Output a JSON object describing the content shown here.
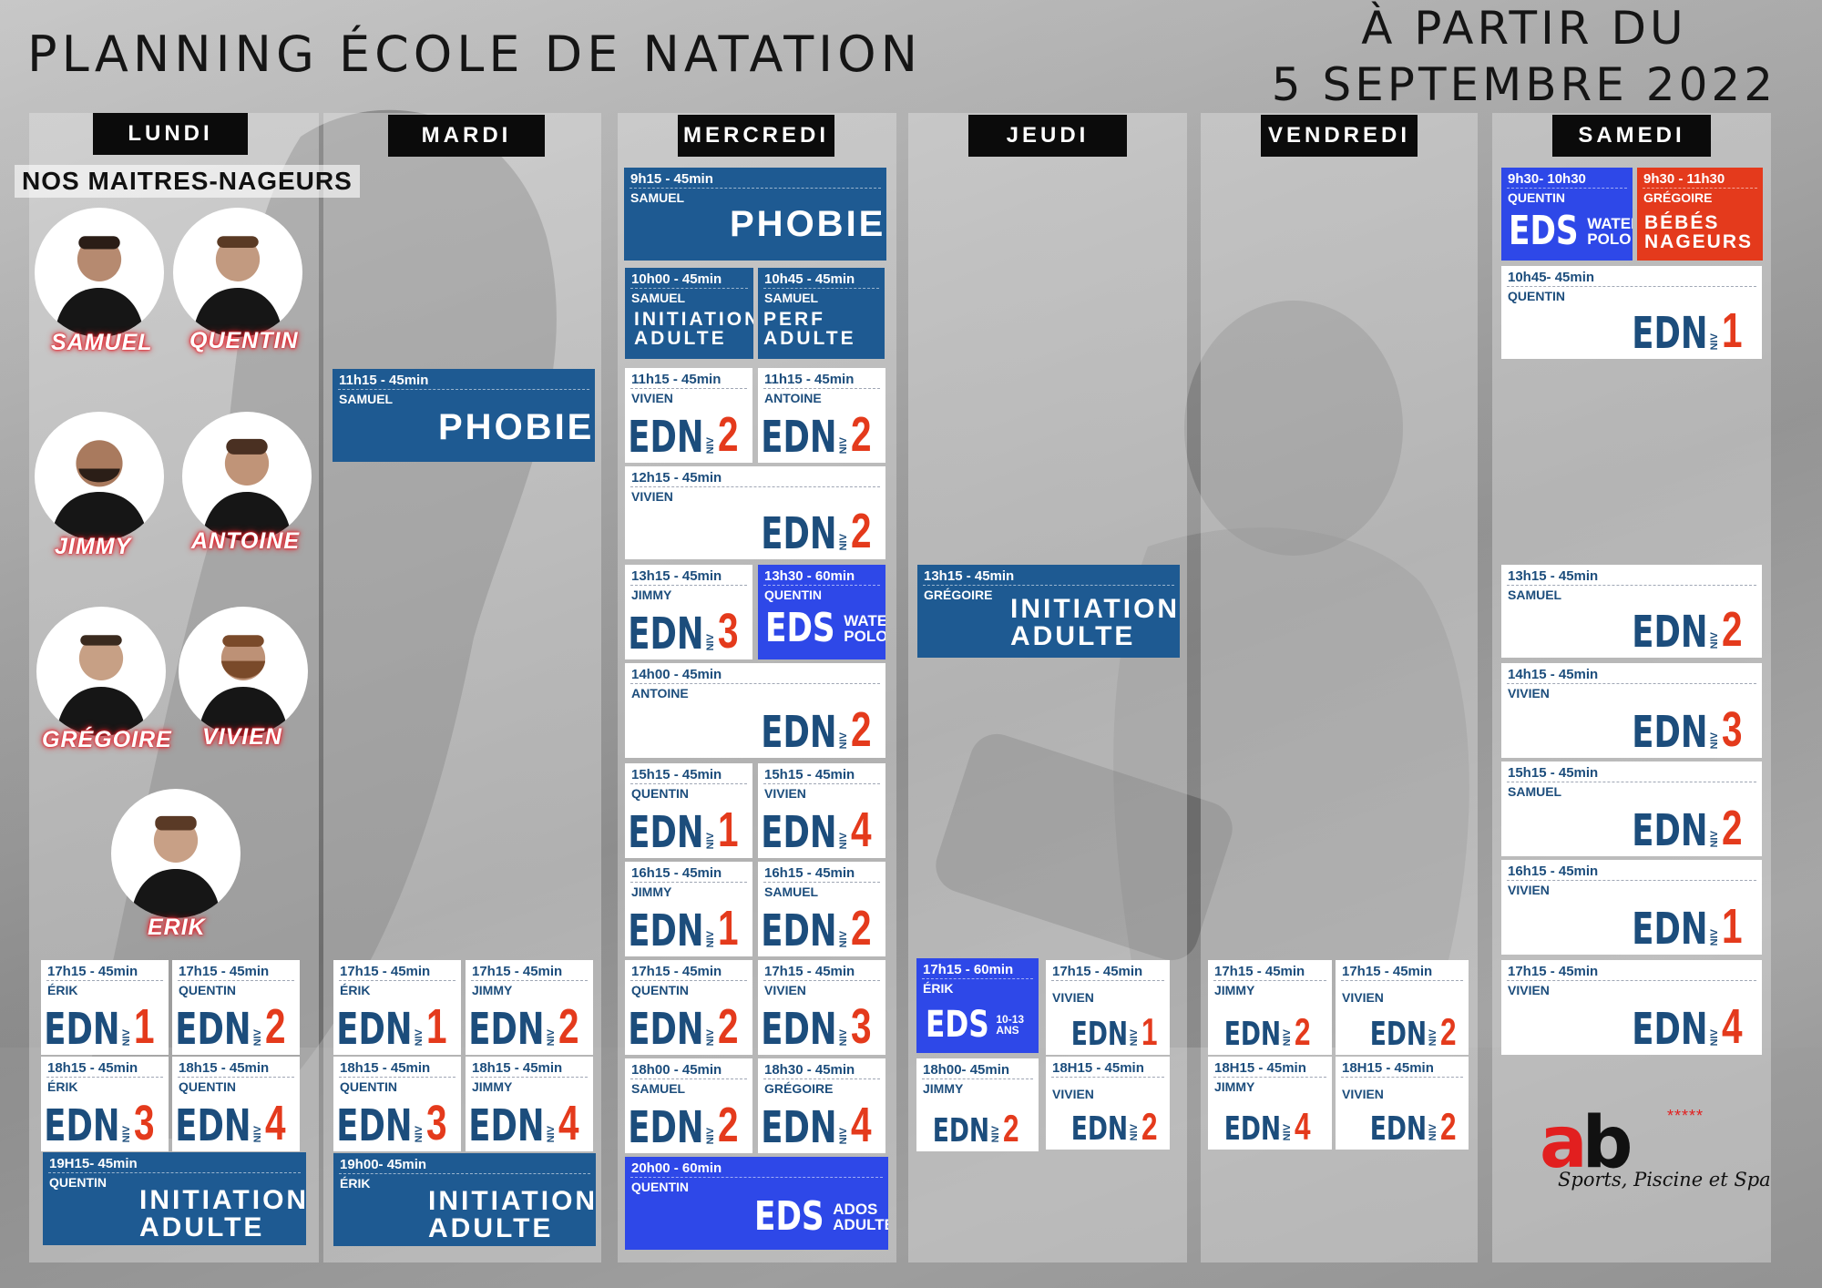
{
  "header": {
    "title": "PLANNING ÉCOLE DE NATATION",
    "date_line1": "À PARTIR DU",
    "date_line2": "5 SEPTEMBRE 2022"
  },
  "days": [
    "LUNDI",
    "MARDI",
    "MERCREDI",
    "JEUDI",
    "VENDREDI",
    "SAMEDI"
  ],
  "staff": {
    "title": "NOS MAITRES-NAGEURS",
    "names": [
      "SAMUEL",
      "QUENTIN",
      "JIMMY",
      "ANTOINE",
      "GRÉGOIRE",
      "VIVIEN",
      "ERIK"
    ]
  },
  "lessons": [
    {
      "time": "17h15 - 45min",
      "coach": "ÉRIK",
      "word": "EDN",
      "niv": "NIV",
      "level": "1"
    },
    {
      "time": "17h15 - 45min",
      "coach": "QUENTIN",
      "word": "EDN",
      "niv": "NIV",
      "level": "2"
    },
    {
      "time": "18h15 - 45min",
      "coach": "ÉRIK",
      "word": "EDN",
      "niv": "NIV",
      "level": "3"
    },
    {
      "time": "18h15 - 45min",
      "coach": "QUENTIN",
      "word": "EDN",
      "niv": "NIV",
      "level": "4"
    },
    {
      "time": "19H15- 45min",
      "coach": "QUENTIN",
      "line1": "INITIATION",
      "line2": "ADULTE"
    },
    {
      "time": "11h15 - 45min",
      "coach": "SAMUEL",
      "label": "PHOBIE"
    },
    {
      "time": "17h15 - 45min",
      "coach": "ÉRIK",
      "word": "EDN",
      "niv": "NIV",
      "level": "1"
    },
    {
      "time": "17h15 - 45min",
      "coach": "JIMMY",
      "word": "EDN",
      "niv": "NIV",
      "level": "2"
    },
    {
      "time": "18h15 - 45min",
      "coach": "QUENTIN",
      "word": "EDN",
      "niv": "NIV",
      "level": "3"
    },
    {
      "time": "18h15 - 45min",
      "coach": "JIMMY",
      "word": "EDN",
      "niv": "NIV",
      "level": "4"
    },
    {
      "time": "19h00- 45min",
      "coach": "ÉRIK",
      "line1": "INITIATION",
      "line2": "ADULTE"
    },
    {
      "time": "9h15 - 45min",
      "coach": "SAMUEL",
      "label": "PHOBIE"
    },
    {
      "time": "10h00 - 45min",
      "coach": "SAMUEL",
      "line1": "INITIATION",
      "line2": "ADULTE"
    },
    {
      "time": "10h45 - 45min",
      "coach": "SAMUEL",
      "line1": "PERF",
      "line2": "ADULTE"
    },
    {
      "time": "11h15 - 45min",
      "coach": "VIVIEN",
      "word": "EDN",
      "niv": "NIV",
      "level": "2"
    },
    {
      "time": "11h15 - 45min",
      "coach": "ANTOINE",
      "word": "EDN",
      "niv": "NIV",
      "level": "2"
    },
    {
      "time": "12h15 - 45min",
      "coach": "VIVIEN",
      "word": "EDN",
      "niv": "NIV",
      "level": "2"
    },
    {
      "time": "13h15 - 45min",
      "coach": "JIMMY",
      "word": "EDN",
      "niv": "NIV",
      "level": "3"
    },
    {
      "time": "13h30 - 60min",
      "coach": "QUENTIN",
      "word": "EDS",
      "sub1": "WATER",
      "sub2": "POLO"
    },
    {
      "time": "14h00 - 45min",
      "coach": "ANTOINE",
      "word": "EDN",
      "niv": "NIV",
      "level": "2"
    },
    {
      "time": "15h15 - 45min",
      "coach": "QUENTIN",
      "word": "EDN",
      "niv": "NIV",
      "level": "1"
    },
    {
      "time": "15h15 - 45min",
      "coach": "VIVIEN",
      "word": "EDN",
      "niv": "NIV",
      "level": "4"
    },
    {
      "time": "16h15 - 45min",
      "coach": "JIMMY",
      "word": "EDN",
      "niv": "NIV",
      "level": "1"
    },
    {
      "time": "16h15 - 45min",
      "coach": "SAMUEL",
      "word": "EDN",
      "niv": "NIV",
      "level": "2"
    },
    {
      "time": "17h15 - 45min",
      "coach": "QUENTIN",
      "word": "EDN",
      "niv": "NIV",
      "level": "2"
    },
    {
      "time": "17h15 - 45min",
      "coach": "VIVIEN",
      "word": "EDN",
      "niv": "NIV",
      "level": "3"
    },
    {
      "time": "18h00 - 45min",
      "coach": "SAMUEL",
      "word": "EDN",
      "niv": "NIV",
      "level": "2"
    },
    {
      "time": "18h30 - 45min",
      "coach": "GRÉGOIRE",
      "word": "EDN",
      "niv": "NIV",
      "level": "4"
    },
    {
      "time": "20h00 - 60min",
      "coach": "QUENTIN",
      "word": "EDS",
      "sub1": "ADOS",
      "sub2": "ADULTES"
    },
    {
      "time": "13h15 - 45min",
      "coach": "GRÉGOIRE",
      "line1": "INITIATION",
      "line2": "ADULTE"
    },
    {
      "time": "17h15 - 60min",
      "coach": "ÉRIK",
      "word": "EDS",
      "sub1": "10-13",
      "sub2": "ANS"
    },
    {
      "time": "17h15 - 45min",
      "coach": "VIVIEN",
      "word": "EDN",
      "niv": "NIV",
      "level": "1"
    },
    {
      "time": "18h00- 45min",
      "coach": "JIMMY",
      "word": "EDN",
      "niv": "NIV",
      "level": "2"
    },
    {
      "time": "18H15 - 45min",
      "coach": "VIVIEN",
      "word": "EDN",
      "niv": "NIV",
      "level": "2"
    },
    {
      "time": "17h15 - 45min",
      "coach": "JIMMY",
      "word": "EDN",
      "niv": "NIV",
      "level": "2"
    },
    {
      "time": "17h15 - 45min",
      "coach": "VIVIEN",
      "word": "EDN",
      "niv": "NIV",
      "level": "2"
    },
    {
      "time": "18H15 - 45min",
      "coach": "JIMMY",
      "word": "EDN",
      "niv": "NIV",
      "level": "4"
    },
    {
      "time": "18H15 - 45min",
      "coach": "VIVIEN",
      "word": "EDN",
      "niv": "NIV",
      "level": "2"
    },
    {
      "time": "9h30- 10h30",
      "coach": "QUENTIN",
      "word": "EDS",
      "sub1": "WATER",
      "sub2": "POLO"
    },
    {
      "time": "9h30 - 11h30",
      "coach": "GRÉGOIRE",
      "line1": "BÉBÉS",
      "line2": "NAGEURS"
    },
    {
      "time": "10h45- 45min",
      "coach": "QUENTIN",
      "word": "EDN",
      "niv": "NIV",
      "level": "1"
    },
    {
      "time": "13h15 - 45min",
      "coach": "SAMUEL",
      "word": "EDN",
      "niv": "NIV",
      "level": "2"
    },
    {
      "time": "14h15 - 45min",
      "coach": "VIVIEN",
      "word": "EDN",
      "niv": "NIV",
      "level": "3"
    },
    {
      "time": "15h15 - 45min",
      "coach": "SAMUEL",
      "word": "EDN",
      "niv": "NIV",
      "level": "2"
    },
    {
      "time": "16h15 - 45min",
      "coach": "VIVIEN",
      "word": "EDN",
      "niv": "NIV",
      "level": "1"
    },
    {
      "time": "17h15 - 45min",
      "coach": "VIVIEN",
      "word": "EDN",
      "niv": "NIV",
      "level": "4"
    }
  ],
  "logo": {
    "text_a": "a",
    "text_b": "b",
    "stars": "*****",
    "tagline": "Sports, Piscine et Spa"
  },
  "colors": {
    "navy": "#1e5a92",
    "bright_blue": "#2e48e8",
    "red": "#e43a1c",
    "text_blue": "#1c4d7c",
    "glow": "#e4202a"
  }
}
